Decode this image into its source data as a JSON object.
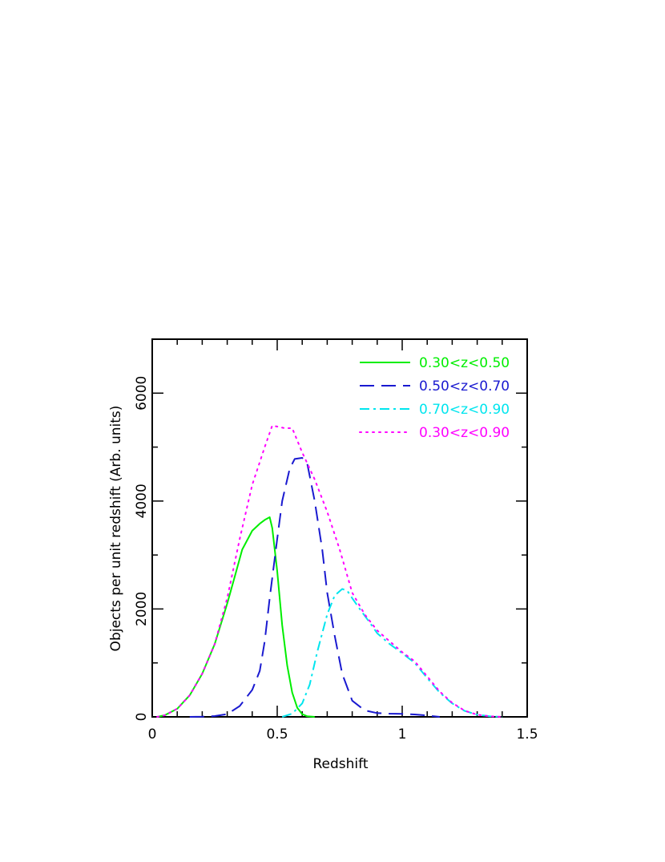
{
  "chart_data": {
    "type": "line",
    "title": "",
    "xlabel": "Redshift",
    "ylabel": "Objects per unit redshift (Arb. units)",
    "xlim": [
      0,
      1.5
    ],
    "ylim": [
      0,
      7000
    ],
    "x_ticks": [
      0,
      0.5,
      1,
      1.5
    ],
    "x_tick_labels": [
      "0",
      "0.5",
      "1",
      "1.5"
    ],
    "y_ticks": [
      0,
      2000,
      4000,
      6000
    ],
    "y_tick_labels": [
      "0",
      "2000",
      "4000",
      "6000"
    ],
    "grid": false,
    "legend_position": "top-right",
    "series": [
      {
        "name": "0.30<z<0.50",
        "color": "#00ee00",
        "style": "solid",
        "x": [
          0.02,
          0.05,
          0.1,
          0.15,
          0.2,
          0.25,
          0.3,
          0.33,
          0.36,
          0.4,
          0.43,
          0.45,
          0.47,
          0.48,
          0.5,
          0.52,
          0.54,
          0.56,
          0.58,
          0.6,
          0.62,
          0.65
        ],
        "y": [
          0,
          30,
          150,
          400,
          800,
          1350,
          2100,
          2600,
          3100,
          3450,
          3580,
          3650,
          3700,
          3500,
          2700,
          1700,
          950,
          450,
          170,
          50,
          10,
          0
        ]
      },
      {
        "name": "0.50<z<0.70",
        "color": "#1a1ad0",
        "style": "dashed",
        "x": [
          0.15,
          0.2,
          0.25,
          0.3,
          0.35,
          0.4,
          0.43,
          0.45,
          0.47,
          0.5,
          0.52,
          0.55,
          0.57,
          0.6,
          0.62,
          0.65,
          0.68,
          0.7,
          0.73,
          0.76,
          0.8,
          0.85,
          0.9,
          0.95,
          1.0,
          1.05,
          1.1,
          1.15
        ],
        "y": [
          0,
          5,
          15,
          50,
          200,
          500,
          850,
          1400,
          2200,
          3300,
          4000,
          4600,
          4780,
          4800,
          4700,
          4000,
          3100,
          2300,
          1500,
          800,
          300,
          120,
          70,
          60,
          55,
          45,
          25,
          0
        ]
      },
      {
        "name": "0.70<z<0.90",
        "color": "#00e5ee",
        "style": "dash-dot",
        "x": [
          0.52,
          0.56,
          0.6,
          0.63,
          0.66,
          0.7,
          0.73,
          0.76,
          0.78,
          0.8,
          0.83,
          0.87,
          0.9,
          0.95,
          1.0,
          1.05,
          1.1,
          1.15,
          1.2,
          1.25,
          1.3,
          1.35,
          1.4
        ],
        "y": [
          0,
          60,
          250,
          600,
          1200,
          1900,
          2250,
          2370,
          2340,
          2200,
          2000,
          1750,
          1550,
          1350,
          1180,
          1000,
          720,
          450,
          250,
          110,
          40,
          10,
          0
        ]
      },
      {
        "name": "0.30<z<0.90",
        "color": "#ff00ff",
        "style": "dotted",
        "x": [
          0.02,
          0.05,
          0.1,
          0.15,
          0.2,
          0.25,
          0.3,
          0.35,
          0.4,
          0.45,
          0.48,
          0.5,
          0.53,
          0.56,
          0.6,
          0.65,
          0.7,
          0.75,
          0.8,
          0.85,
          0.9,
          0.95,
          1.0,
          1.05,
          1.1,
          1.15,
          1.2,
          1.25,
          1.3,
          1.35,
          1.4
        ],
        "y": [
          0,
          30,
          150,
          400,
          800,
          1350,
          2200,
          3300,
          4300,
          5000,
          5400,
          5380,
          5350,
          5350,
          4900,
          4400,
          3800,
          3100,
          2300,
          1900,
          1600,
          1400,
          1200,
          1030,
          750,
          470,
          260,
          115,
          40,
          10,
          0
        ]
      }
    ]
  }
}
